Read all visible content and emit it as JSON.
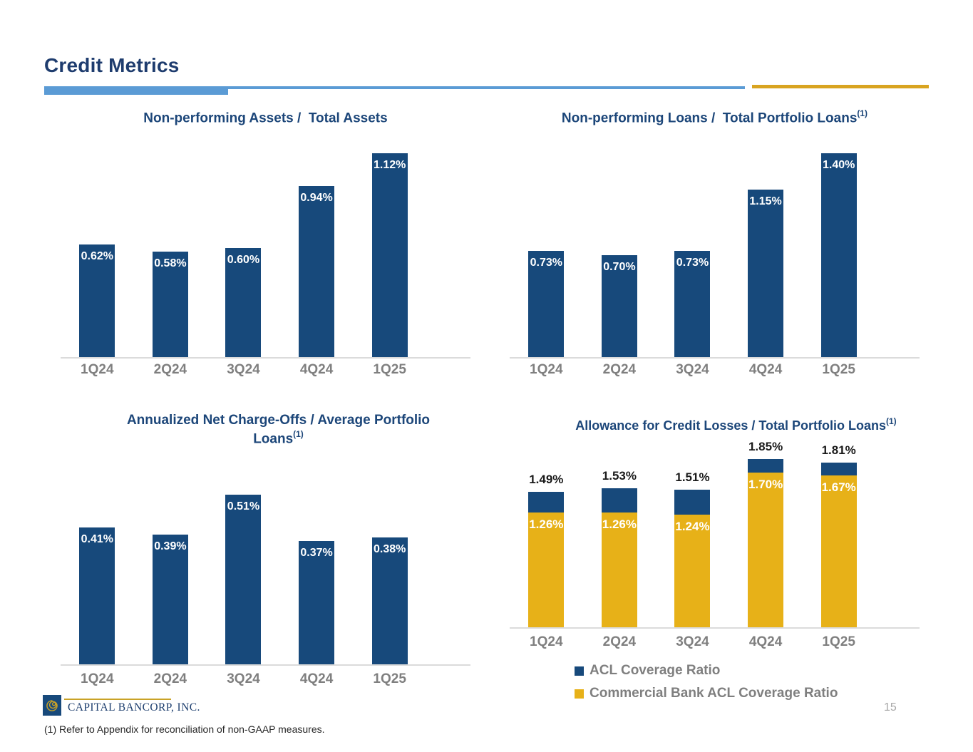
{
  "header": {
    "title": "Credit Metrics"
  },
  "colors": {
    "navy": "#17497B",
    "gold": "#E7B118",
    "accent_light_blue": "#5B9BD5",
    "divider_gold": "#D9A420",
    "axis_label_gray": "#7F7F7F",
    "baseline_gray": "#DBDBDB",
    "page_number_gray": "#A6A6A6"
  },
  "chart_data": [
    {
      "id": "npa-total-assets",
      "type": "bar",
      "stacked": false,
      "title": "Non-performing Assets /  Total Assets",
      "title_sup": "",
      "categories": [
        "1Q24",
        "2Q24",
        "3Q24",
        "4Q24",
        "1Q25"
      ],
      "values": [
        0.62,
        0.58,
        0.6,
        0.94,
        1.12
      ],
      "labels": [
        "0.62%",
        "0.58%",
        "0.60%",
        "0.94%",
        "1.12%"
      ],
      "color": "#17497B",
      "ylim": [
        0,
        1.2
      ],
      "grid": false,
      "xlabel": "",
      "ylabel": ""
    },
    {
      "id": "npl-total-portfolio-loans",
      "type": "bar",
      "stacked": false,
      "title": "Non-performing Loans /  Total Portfolio Loans",
      "title_sup": "(1)",
      "categories": [
        "1Q24",
        "2Q24",
        "3Q24",
        "4Q24",
        "1Q25"
      ],
      "values": [
        0.73,
        0.7,
        0.73,
        1.15,
        1.4
      ],
      "labels": [
        "0.73%",
        "0.70%",
        "0.73%",
        "1.15%",
        "1.40%"
      ],
      "color": "#17497B",
      "ylim": [
        0,
        1.5
      ],
      "grid": false,
      "xlabel": "",
      "ylabel": ""
    },
    {
      "id": "net-charge-offs",
      "type": "bar",
      "stacked": false,
      "title": "Annualized Net Charge-Offs / Average Portfolio Loans",
      "title_sup": "(1)",
      "categories": [
        "1Q24",
        "2Q24",
        "3Q24",
        "4Q24",
        "1Q25"
      ],
      "values": [
        0.41,
        0.39,
        0.51,
        0.37,
        0.38
      ],
      "labels": [
        "0.41%",
        "0.39%",
        "0.51%",
        "0.37%",
        "0.38%"
      ],
      "color": "#17497B",
      "ylim": [
        0,
        0.55
      ],
      "grid": false,
      "xlabel": "",
      "ylabel": ""
    },
    {
      "id": "acl-total-portfolio-loans",
      "type": "bar",
      "stacked": true,
      "title": "Allowance for Credit Losses / Total Portfolio Loans",
      "title_sup": "(1)",
      "categories": [
        "1Q24",
        "2Q24",
        "3Q24",
        "4Q24",
        "1Q25"
      ],
      "series": [
        {
          "name": "ACL Coverage Ratio",
          "color": "#17497B",
          "values": [
            1.49,
            1.53,
            1.51,
            1.85,
            1.81
          ],
          "labels": [
            "1.49%",
            "1.53%",
            "1.51%",
            "1.85%",
            "1.81%"
          ]
        },
        {
          "name": "Commercial Bank ACL Coverage Ratio",
          "color": "#E7B118",
          "values": [
            1.26,
            1.26,
            1.24,
            1.7,
            1.67
          ],
          "labels": [
            "1.26%",
            "1.26%",
            "1.24%",
            "1.70%",
            "1.67%"
          ]
        }
      ],
      "ylim": [
        0,
        2.0
      ],
      "grid": false,
      "legend_position": "bottom",
      "xlabel": "",
      "ylabel": ""
    }
  ],
  "footer": {
    "logo_text": "CAPITAL BANCORP, INC.",
    "footnote": "(1) Refer to Appendix for reconciliation of non-GAAP measures.",
    "page_number": "15"
  }
}
